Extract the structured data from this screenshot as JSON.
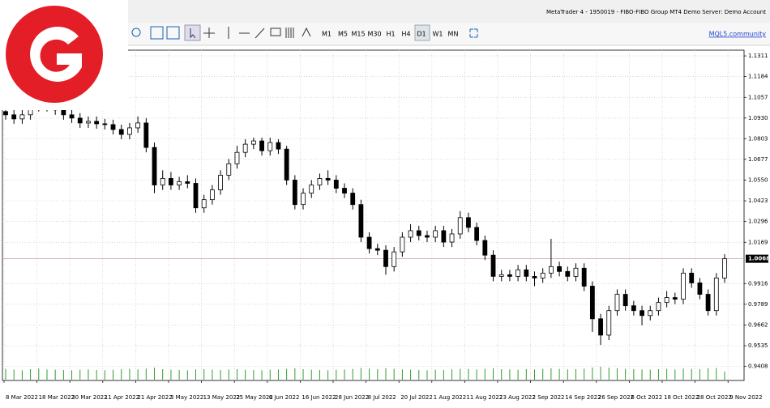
{
  "window": {
    "title": "MetaTrader 4 - 1950019 - FIBO-FIBO Group MT4 Demo Server: Demo Account",
    "timeframes": [
      "M1",
      "M5",
      "M15",
      "M30",
      "H1",
      "H4",
      "D1",
      "W1",
      "MN"
    ],
    "active_timeframe": "D1",
    "link": "MQL5.community"
  },
  "chart_data": {
    "type": "candlestick",
    "candles": [
      [
        1.097,
        1.1,
        1.092,
        1.095
      ],
      [
        1.095,
        1.098,
        1.0895,
        1.0925
      ],
      [
        1.0925,
        1.098,
        1.0895,
        1.095
      ],
      [
        1.095,
        1.103,
        1.092,
        1.1
      ],
      [
        1.1,
        1.108,
        1.097,
        1.105
      ],
      [
        1.105,
        1.108,
        1.097,
        1.1
      ],
      [
        1.1,
        1.103,
        1.095,
        1.098
      ],
      [
        1.098,
        1.101,
        1.092,
        1.095
      ],
      [
        1.095,
        1.098,
        1.09,
        1.093
      ],
      [
        1.093,
        1.096,
        1.087,
        1.09
      ],
      [
        1.09,
        1.094,
        1.087,
        1.091
      ],
      [
        1.091,
        1.094,
        1.0865,
        1.0895
      ],
      [
        1.0895,
        1.0925,
        1.086,
        1.089
      ],
      [
        1.089,
        1.092,
        1.083,
        1.086
      ],
      [
        1.086,
        1.089,
        1.08,
        1.083
      ],
      [
        1.083,
        1.09,
        1.08,
        1.087
      ],
      [
        1.087,
        1.094,
        1.084,
        1.09
      ],
      [
        1.09,
        1.093,
        1.072,
        1.075
      ],
      [
        1.075,
        1.078,
        1.047,
        1.052
      ],
      [
        1.052,
        1.061,
        1.049,
        1.056
      ],
      [
        1.056,
        1.06,
        1.049,
        1.052
      ],
      [
        1.052,
        1.057,
        1.049,
        1.054
      ],
      [
        1.054,
        1.058,
        1.05,
        1.053
      ],
      [
        1.053,
        1.056,
        1.035,
        1.038
      ],
      [
        1.038,
        1.046,
        1.035,
        1.043
      ],
      [
        1.043,
        1.052,
        1.04,
        1.049
      ],
      [
        1.049,
        1.061,
        1.046,
        1.058
      ],
      [
        1.058,
        1.068,
        1.055,
        1.065
      ],
      [
        1.065,
        1.076,
        1.062,
        1.072
      ],
      [
        1.072,
        1.08,
        1.069,
        1.077
      ],
      [
        1.077,
        1.081,
        1.074,
        1.079
      ],
      [
        1.079,
        1.081,
        1.07,
        1.073
      ],
      [
        1.073,
        1.081,
        1.07,
        1.078
      ],
      [
        1.078,
        1.08,
        1.071,
        1.074
      ],
      [
        1.074,
        1.076,
        1.052,
        1.055
      ],
      [
        1.055,
        1.058,
        1.037,
        1.04
      ],
      [
        1.04,
        1.05,
        1.037,
        1.047
      ],
      [
        1.047,
        1.055,
        1.044,
        1.052
      ],
      [
        1.052,
        1.059,
        1.049,
        1.056
      ],
      [
        1.056,
        1.061,
        1.052,
        1.055
      ],
      [
        1.055,
        1.058,
        1.047,
        1.05
      ],
      [
        1.05,
        1.053,
        1.044,
        1.047
      ],
      [
        1.047,
        1.05,
        1.037,
        1.04
      ],
      [
        1.04,
        1.043,
        1.017,
        1.02
      ],
      [
        1.02,
        1.023,
        1.01,
        1.013
      ],
      [
        1.013,
        1.016,
        1.009,
        1.012
      ],
      [
        1.012,
        1.015,
        0.997,
        1.002
      ],
      [
        1.002,
        1.014,
        0.999,
        1.011
      ],
      [
        1.011,
        1.023,
        1.008,
        1.02
      ],
      [
        1.02,
        1.028,
        1.017,
        1.024
      ],
      [
        1.024,
        1.027,
        1.018,
        1.021
      ],
      [
        1.021,
        1.024,
        1.017,
        1.02
      ],
      [
        1.02,
        1.027,
        1.017,
        1.024
      ],
      [
        1.024,
        1.027,
        1.014,
        1.017
      ],
      [
        1.017,
        1.025,
        1.014,
        1.022
      ],
      [
        1.022,
        1.036,
        1.019,
        1.032
      ],
      [
        1.032,
        1.035,
        1.023,
        1.026
      ],
      [
        1.026,
        1.029,
        1.015,
        1.018
      ],
      [
        1.018,
        1.021,
        1.006,
        1.009
      ],
      [
        1.009,
        1.012,
        0.993,
        0.996
      ],
      [
        0.996,
        1.0,
        0.993,
        0.997
      ],
      [
        0.997,
        1.0,
        0.993,
        0.996
      ],
      [
        0.996,
        1.003,
        0.993,
        1.0
      ],
      [
        1.0,
        1.003,
        0.993,
        0.996
      ],
      [
        0.996,
        0.999,
        0.99,
        0.995
      ],
      [
        0.995,
        1.001,
        0.992,
        0.998
      ],
      [
        0.998,
        1.019,
        0.995,
        1.002
      ],
      [
        1.002,
        1.005,
        0.996,
        0.999
      ],
      [
        0.999,
        1.002,
        0.993,
        0.996
      ],
      [
        0.996,
        1.004,
        0.993,
        1.001
      ],
      [
        1.001,
        1.004,
        0.987,
        0.99
      ],
      [
        0.99,
        0.993,
        0.962,
        0.97
      ],
      [
        0.97,
        0.973,
        0.954,
        0.96
      ],
      [
        0.96,
        0.978,
        0.957,
        0.975
      ],
      [
        0.975,
        0.988,
        0.972,
        0.985
      ],
      [
        0.985,
        0.988,
        0.975,
        0.978
      ],
      [
        0.978,
        0.981,
        0.972,
        0.975
      ],
      [
        0.975,
        0.978,
        0.966,
        0.972
      ],
      [
        0.972,
        0.978,
        0.969,
        0.975
      ],
      [
        0.975,
        0.983,
        0.972,
        0.98
      ],
      [
        0.98,
        0.987,
        0.977,
        0.983
      ],
      [
        0.983,
        0.986,
        0.979,
        0.982
      ],
      [
        0.982,
        1.001,
        0.979,
        0.998
      ],
      [
        0.998,
        1.001,
        0.989,
        0.992
      ],
      [
        0.992,
        0.995,
        0.982,
        0.985
      ],
      [
        0.985,
        0.988,
        0.972,
        0.975
      ],
      [
        0.975,
        0.998,
        0.972,
        0.995
      ],
      [
        0.995,
        1.0095,
        0.992,
        1.0068
      ]
    ],
    "volumes": [
      80,
      75,
      70,
      78,
      82,
      76,
      74,
      72,
      70,
      74,
      76,
      72,
      70,
      74,
      78,
      80,
      76,
      82,
      88,
      78,
      74,
      72,
      70,
      76,
      78,
      74,
      72,
      76,
      78,
      74,
      72,
      70,
      74,
      76,
      80,
      84,
      78,
      74,
      72,
      70,
      74,
      76,
      80,
      86,
      82,
      78,
      84,
      80,
      76,
      74,
      72,
      70,
      74,
      72,
      76,
      80,
      78,
      76,
      80,
      84,
      78,
      76,
      74,
      78,
      76,
      80,
      84,
      80,
      76,
      78,
      82,
      90,
      96,
      88,
      84,
      80,
      78,
      76,
      74,
      78,
      80,
      76,
      82,
      80,
      78,
      84,
      86,
      60
    ],
    "volume_color": "#2e9e2e",
    "bull_color": "#ffffff",
    "bear_color": "#000000",
    "outline_color": "#000000",
    "ylim": [
      0.9322,
      1.1346
    ],
    "yticks": [
      1.1311,
      1.1184,
      1.1057,
      {
        "value": 1.093,
        "label": "1.0930"
      },
      1.0803,
      1.0677,
      {
        "value": 1.055,
        "label": "1.0550"
      },
      1.0423,
      1.0296,
      1.0169,
      0.9916,
      0.9789,
      0.9662,
      0.9535,
      0.9408
    ],
    "current_price": 1.0068,
    "x_labels": [
      "8 Mar 2022",
      "18 Mar 2022",
      "30 Mar 2022",
      "11 Apr 2022",
      "21 Apr 2022",
      "3 May 2022",
      "13 May 2022",
      "25 May 2022",
      "6 Jun 2022",
      "16 Jun 2022",
      "28 Jun 2022",
      "8 Jul 2022",
      "20 Jul 2022",
      "1 Aug 2022",
      "11 Aug 2022",
      "23 Aug 2022",
      "2 Sep 2022",
      "14 Sep 2022",
      "26 Sep 2022",
      "6 Oct 2022",
      "18 Oct 2022",
      "28 Oct 2022",
      "9 Nov 2022"
    ],
    "grid": true
  }
}
